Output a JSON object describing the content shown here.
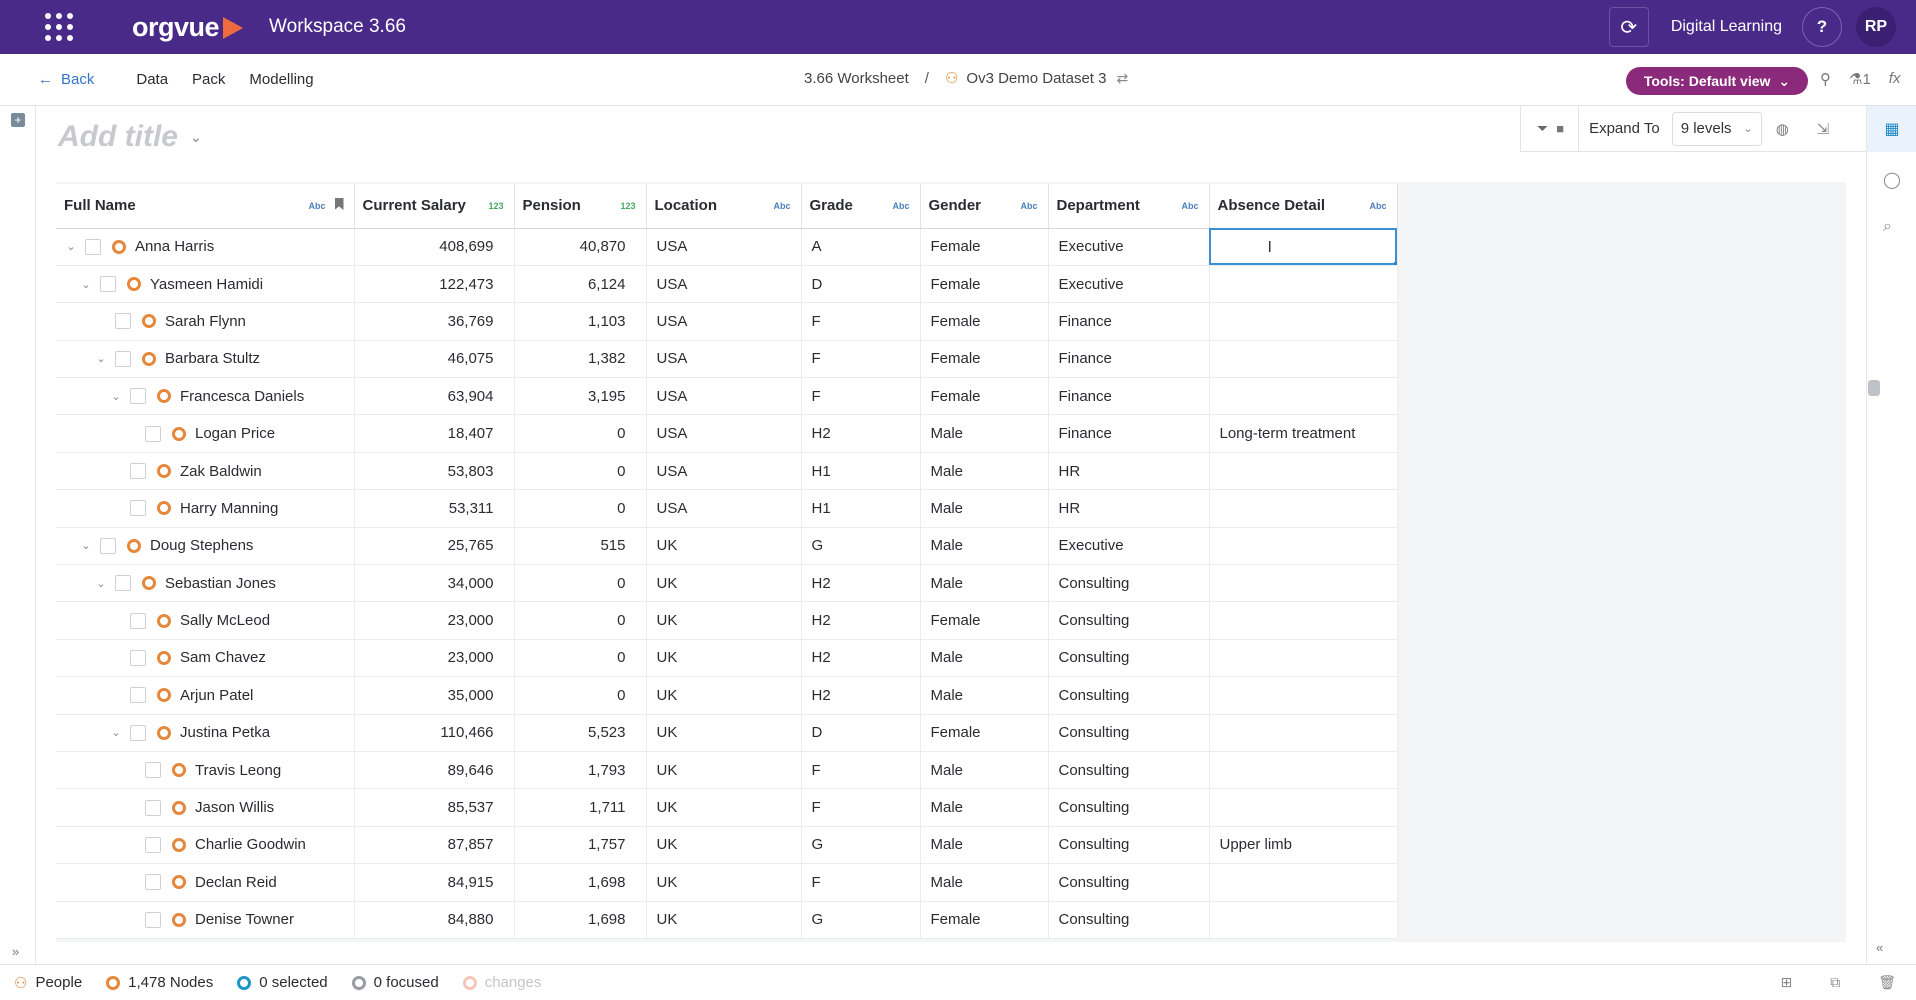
{
  "topbar": {
    "app_logo": "orgvue",
    "workspace": "Workspace  3.66",
    "refresh_icon": "refresh-icon",
    "digital_learning": "Digital Learning",
    "help": "?",
    "user_initials": "RP",
    "colors": {
      "background": "#4a2a88",
      "logo_accent": "#f06a3f"
    }
  },
  "nav": {
    "back": "Back",
    "items": [
      "Data",
      "Pack",
      "Modelling"
    ],
    "breadcrumb": {
      "worksheet": "3.66 Worksheet",
      "separator": "/",
      "dataset": "Ov3 Demo Dataset 3"
    },
    "tools_button": "Tools: Default view",
    "pin_count": "1",
    "fx": "fx"
  },
  "canvas": {
    "title_placeholder": "Add title",
    "expand_to_label": "Expand To",
    "expand_levels": "9 levels"
  },
  "grid": {
    "columns": [
      {
        "label": "Full Name",
        "type": "Abc"
      },
      {
        "label": "Current Salary",
        "type": "123"
      },
      {
        "label": "Pension",
        "type": "123"
      },
      {
        "label": "Location",
        "type": "Abc"
      },
      {
        "label": "Grade",
        "type": "Abc"
      },
      {
        "label": "Gender",
        "type": "Abc"
      },
      {
        "label": "Department",
        "type": "Abc"
      },
      {
        "label": "Absence Detail",
        "type": "Abc"
      }
    ],
    "rows": [
      {
        "name": "Anna Harris",
        "salary": "408,699",
        "pension": "40,870",
        "location": "USA",
        "grade": "A",
        "gender": "Female",
        "department": "Executive",
        "absence": ""
      },
      {
        "name": "Yasmeen Hamidi",
        "salary": "122,473",
        "pension": "6,124",
        "location": "USA",
        "grade": "D",
        "gender": "Female",
        "department": "Executive",
        "absence": ""
      },
      {
        "name": "Sarah Flynn",
        "salary": "36,769",
        "pension": "1,103",
        "location": "USA",
        "grade": "F",
        "gender": "Female",
        "department": "Finance",
        "absence": ""
      },
      {
        "name": "Barbara Stultz",
        "salary": "46,075",
        "pension": "1,382",
        "location": "USA",
        "grade": "F",
        "gender": "Female",
        "department": "Finance",
        "absence": ""
      },
      {
        "name": "Francesca Daniels",
        "salary": "63,904",
        "pension": "3,195",
        "location": "USA",
        "grade": "F",
        "gender": "Female",
        "department": "Finance",
        "absence": ""
      },
      {
        "name": "Logan Price",
        "salary": "18,407",
        "pension": "0",
        "location": "USA",
        "grade": "H2",
        "gender": "Male",
        "department": "Finance",
        "absence": "Long-term treatment"
      },
      {
        "name": "Zak Baldwin",
        "salary": "53,803",
        "pension": "0",
        "location": "USA",
        "grade": "H1",
        "gender": "Male",
        "department": "HR",
        "absence": ""
      },
      {
        "name": "Harry Manning",
        "salary": "53,311",
        "pension": "0",
        "location": "USA",
        "grade": "H1",
        "gender": "Male",
        "department": "HR",
        "absence": ""
      },
      {
        "name": "Doug Stephens",
        "salary": "25,765",
        "pension": "515",
        "location": "UK",
        "grade": "G",
        "gender": "Male",
        "department": "Executive",
        "absence": ""
      },
      {
        "name": "Sebastian Jones",
        "salary": "34,000",
        "pension": "0",
        "location": "UK",
        "grade": "H2",
        "gender": "Male",
        "department": "Consulting",
        "absence": ""
      },
      {
        "name": "Sally McLeod",
        "salary": "23,000",
        "pension": "0",
        "location": "UK",
        "grade": "H2",
        "gender": "Female",
        "department": "Consulting",
        "absence": ""
      },
      {
        "name": "Sam Chavez",
        "salary": "23,000",
        "pension": "0",
        "location": "UK",
        "grade": "H2",
        "gender": "Male",
        "department": "Consulting",
        "absence": ""
      },
      {
        "name": "Arjun Patel",
        "salary": "35,000",
        "pension": "0",
        "location": "UK",
        "grade": "H2",
        "gender": "Male",
        "department": "Consulting",
        "absence": ""
      },
      {
        "name": "Justina Petka",
        "salary": "110,466",
        "pension": "5,523",
        "location": "UK",
        "grade": "D",
        "gender": "Female",
        "department": "Consulting",
        "absence": ""
      },
      {
        "name": "Travis Leong",
        "salary": "89,646",
        "pension": "1,793",
        "location": "UK",
        "grade": "F",
        "gender": "Male",
        "department": "Consulting",
        "absence": ""
      },
      {
        "name": "Jason Willis",
        "salary": "85,537",
        "pension": "1,711",
        "location": "UK",
        "grade": "F",
        "gender": "Male",
        "department": "Consulting",
        "absence": ""
      },
      {
        "name": "Charlie Goodwin",
        "salary": "87,857",
        "pension": "1,757",
        "location": "UK",
        "grade": "G",
        "gender": "Male",
        "department": "Consulting",
        "absence": "Upper limb"
      },
      {
        "name": "Declan Reid",
        "salary": "84,915",
        "pension": "1,698",
        "location": "UK",
        "grade": "F",
        "gender": "Male",
        "department": "Consulting",
        "absence": ""
      },
      {
        "name": "Denise Towner",
        "salary": "84,880",
        "pension": "1,698",
        "location": "UK",
        "grade": "G",
        "gender": "Female",
        "department": "Consulting",
        "absence": ""
      }
    ],
    "tree": [
      {
        "level": 0,
        "expanded": true
      },
      {
        "level": 1,
        "expanded": true
      },
      {
        "level": 2,
        "expanded": false
      },
      {
        "level": 2,
        "expanded": true
      },
      {
        "level": 3,
        "expanded": true
      },
      {
        "level": 4,
        "expanded": false
      },
      {
        "level": 3,
        "expanded": false
      },
      {
        "level": 3,
        "expanded": false
      },
      {
        "level": 1,
        "expanded": true
      },
      {
        "level": 2,
        "expanded": true
      },
      {
        "level": 3,
        "expanded": false
      },
      {
        "level": 3,
        "expanded": false
      },
      {
        "level": 3,
        "expanded": false
      },
      {
        "level": 3,
        "expanded": true
      },
      {
        "level": 4,
        "expanded": false
      },
      {
        "level": 4,
        "expanded": false
      },
      {
        "level": 4,
        "expanded": false
      },
      {
        "level": 4,
        "expanded": false
      },
      {
        "level": 4,
        "expanded": false
      }
    ],
    "selected_cell": {
      "row": 0,
      "column": "Absence Detail"
    }
  },
  "status": {
    "dataset": "People",
    "nodes": "1,478 Nodes",
    "selected": "0 selected",
    "focused": "0 focused",
    "changes": "changes"
  }
}
